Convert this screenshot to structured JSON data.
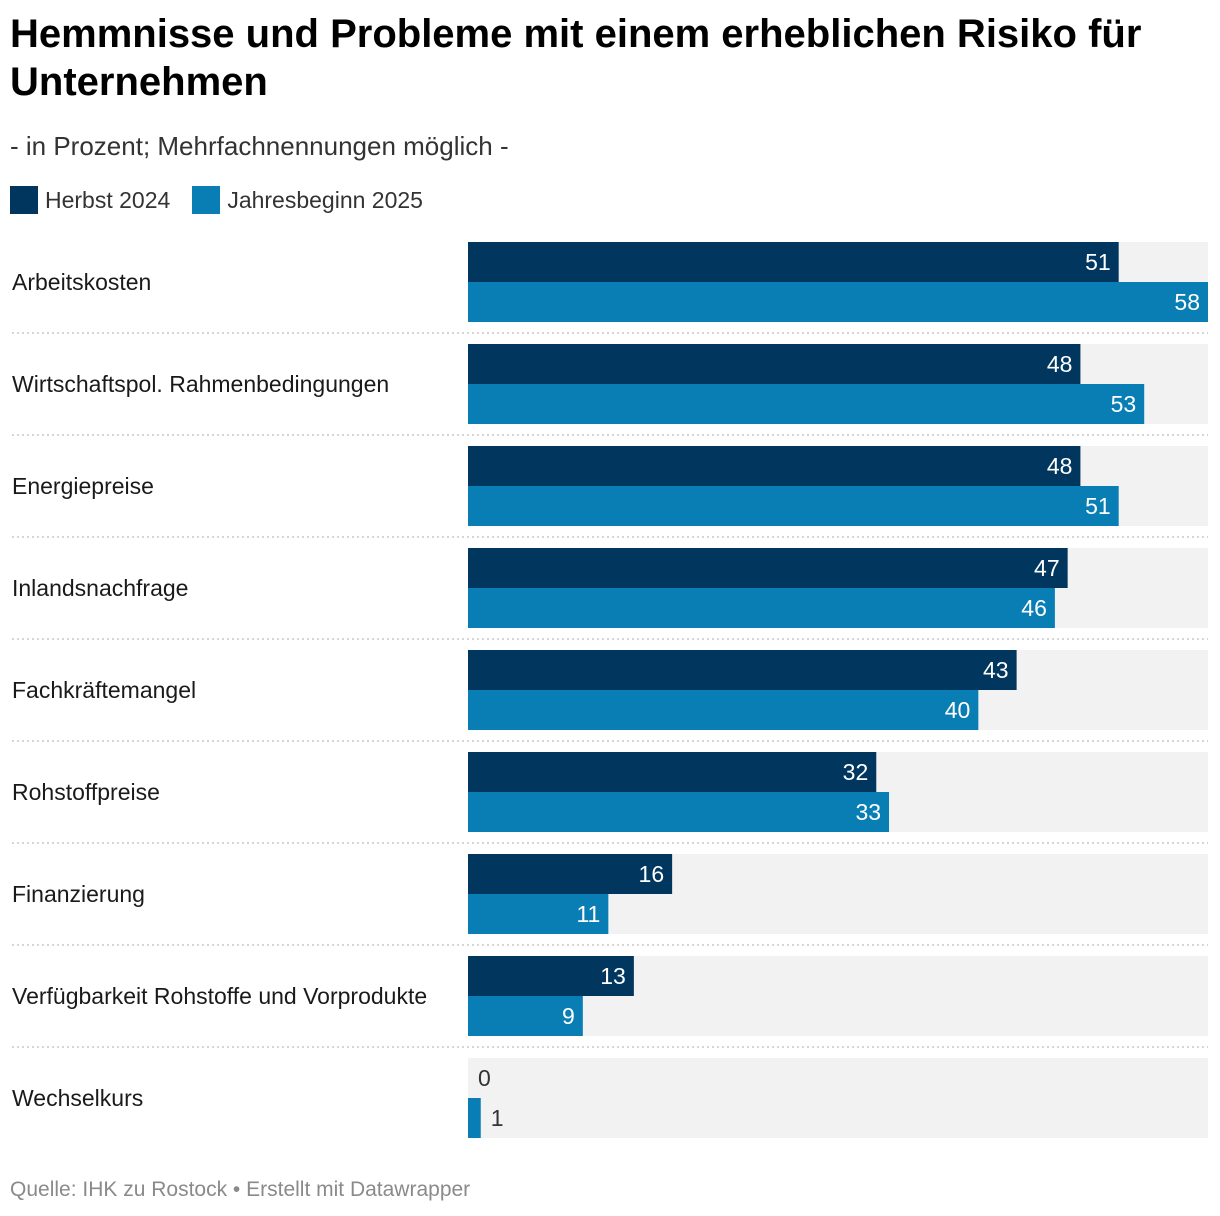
{
  "title": "Hemmnisse und Probleme mit einem erheblichen Risiko für Unternehmen",
  "subtitle": "- in Prozent; Mehrfachnennungen möglich -",
  "source": "Quelle: IHK zu Rostock • Erstellt mit Datawrapper",
  "colors": {
    "series1": "#01375f",
    "series2": "#097eb4",
    "track": "#f2f2f2"
  },
  "chart_data": {
    "type": "bar",
    "orientation": "horizontal",
    "title": "Hemmnisse und Probleme mit einem erheblichen Risiko für Unternehmen",
    "subtitle": "- in Prozent; Mehrfachnennungen möglich -",
    "legend_position": "top-left",
    "xlim": [
      0,
      58
    ],
    "grid": false,
    "categories": [
      "Arbeitskosten",
      "Wirtschaftspol. Rahmenbedingungen",
      "Energiepreise",
      "Inlandsnachfrage",
      "Fachkräftemangel",
      "Rohstoffpreise",
      "Finanzierung",
      "Verfügbarkeit Rohstoffe und Vorprodukte",
      "Wechselkurs"
    ],
    "series": [
      {
        "name": "Herbst 2024",
        "color": "#01375f",
        "values": [
          51,
          48,
          48,
          47,
          43,
          32,
          16,
          13,
          0
        ]
      },
      {
        "name": "Jahresbeginn 2025",
        "color": "#097eb4",
        "values": [
          58,
          53,
          51,
          46,
          40,
          33,
          11,
          9,
          1
        ]
      }
    ]
  }
}
